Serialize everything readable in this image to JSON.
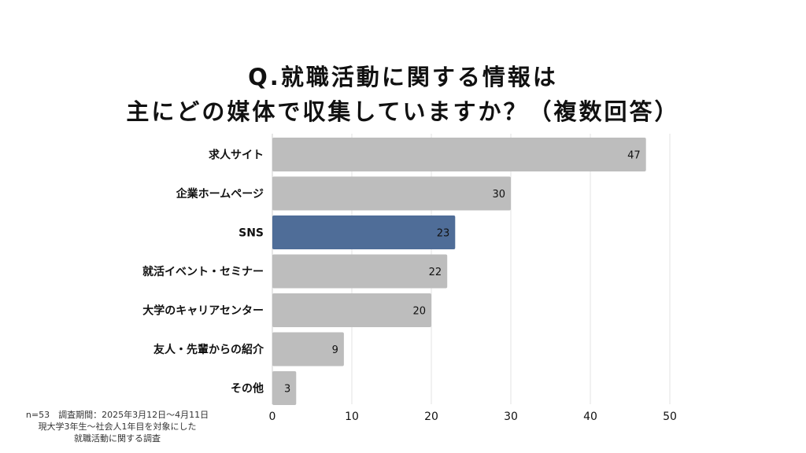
{
  "title": {
    "line1": "Q.就職活動に関する情報は",
    "line2": "主にどの媒体で収集していますか？（複数回答）"
  },
  "footnote": {
    "line1": "n=53　調査期間：2025年3月12日～4月11日",
    "line2": "現大学3年生～社会人1年目を対象にした",
    "line3": "就職活動に関する調査"
  },
  "colors": {
    "bar": "#bdbdbd",
    "highlight": "#4f6d98",
    "grid": "#e3e3e3",
    "highlight_text": "#ffffff"
  },
  "chart_data": {
    "type": "bar",
    "orientation": "horizontal",
    "categories": [
      "求人サイト",
      "企業ホームページ",
      "SNS",
      "就活イベント・セミナー",
      "大学のキャリアセンター",
      "友人・先輩からの紹介",
      "その他"
    ],
    "values": [
      47,
      30,
      23,
      22,
      20,
      9,
      3
    ],
    "highlight_index": 2,
    "xlim": [
      0,
      50
    ],
    "xticks": [
      0,
      10,
      20,
      30,
      40,
      50
    ],
    "grid": true
  }
}
